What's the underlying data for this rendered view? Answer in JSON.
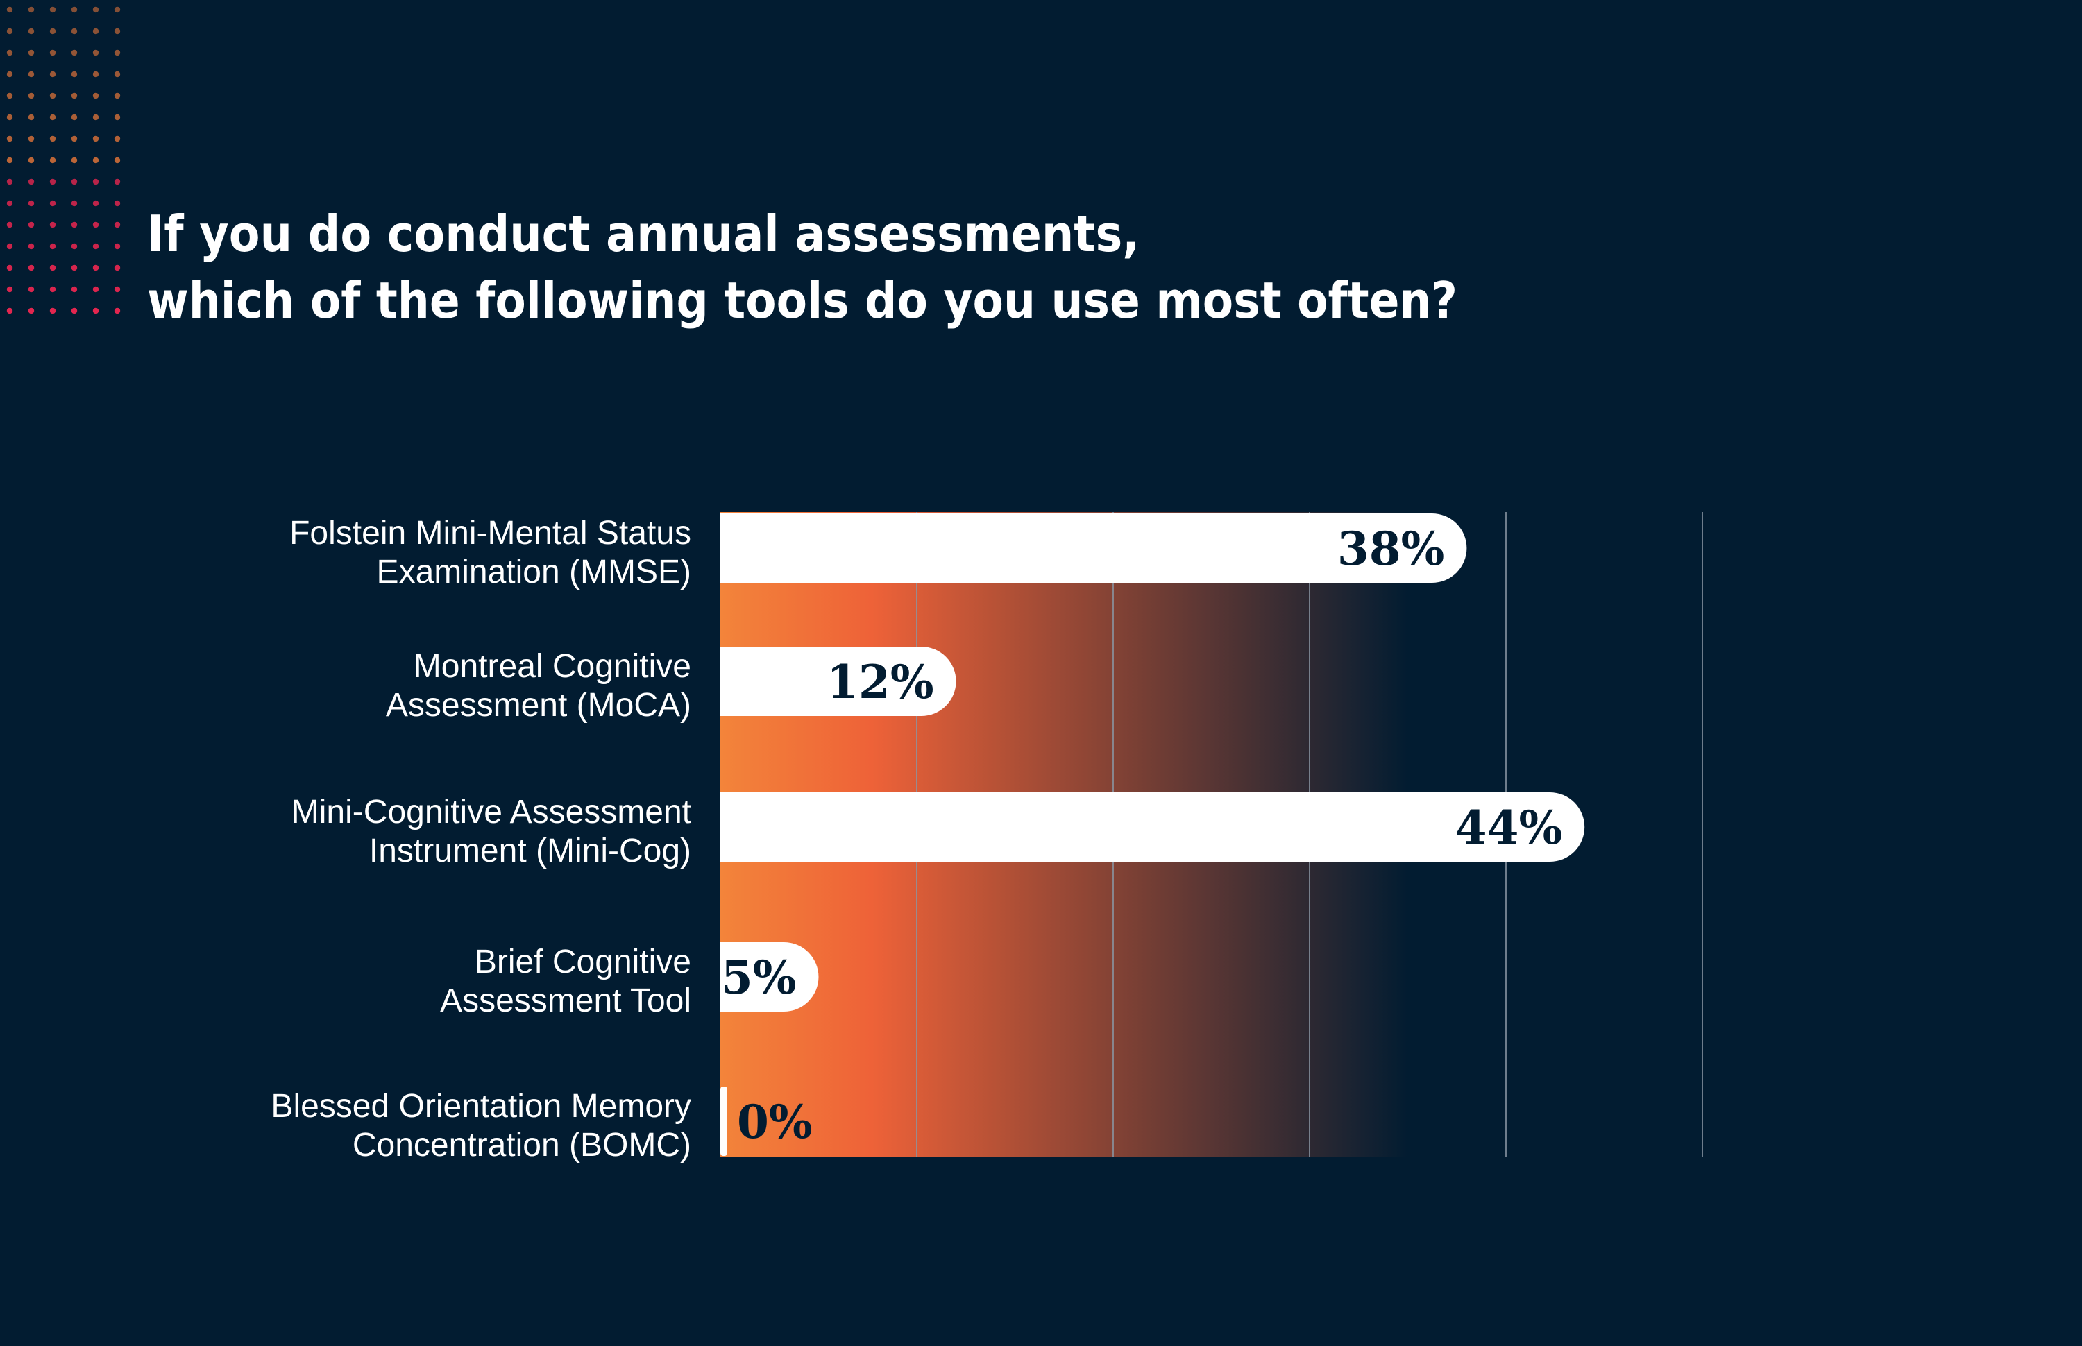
{
  "title_lines": [
    "If you do conduct annual assessments,",
    "which of the following tools do you use most often?"
  ],
  "colors": {
    "background": "#021c31",
    "bar": "#ffffff",
    "value_text": "#021c31",
    "label_text": "#ffffff",
    "gridline": "#8a96a3",
    "gradient_start": "#f3843a",
    "gradient_mid": "#ee6238",
    "gradient_end": "#021c31",
    "dots_orange": "#f07a3a",
    "dots_red": "#e2264f"
  },
  "chart_data": {
    "type": "bar",
    "orientation": "horizontal",
    "title": "If you do conduct annual assessments, which of the following tools do you use most often?",
    "xlim": [
      0,
      50
    ],
    "gridlines_at": [
      10,
      20,
      30,
      40,
      50
    ],
    "grid": true,
    "categories": [
      {
        "lines": [
          "Folstein Mini-Mental Status",
          "Examination (MMSE)"
        ],
        "value": 38,
        "label": "38%"
      },
      {
        "lines": [
          "Montreal Cognitive",
          "Assessment (MoCA)"
        ],
        "value": 12,
        "label": "12%"
      },
      {
        "lines": [
          "Mini-Cognitive Assessment",
          "Instrument (Mini-Cog)"
        ],
        "value": 44,
        "label": "44%"
      },
      {
        "lines": [
          "Brief Cognitive",
          "Assessment Tool"
        ],
        "value": 5,
        "label": "5%"
      },
      {
        "lines": [
          "Blessed Orientation Memory",
          "Concentration (BOMC)"
        ],
        "value": 0,
        "label": "0%"
      }
    ]
  }
}
